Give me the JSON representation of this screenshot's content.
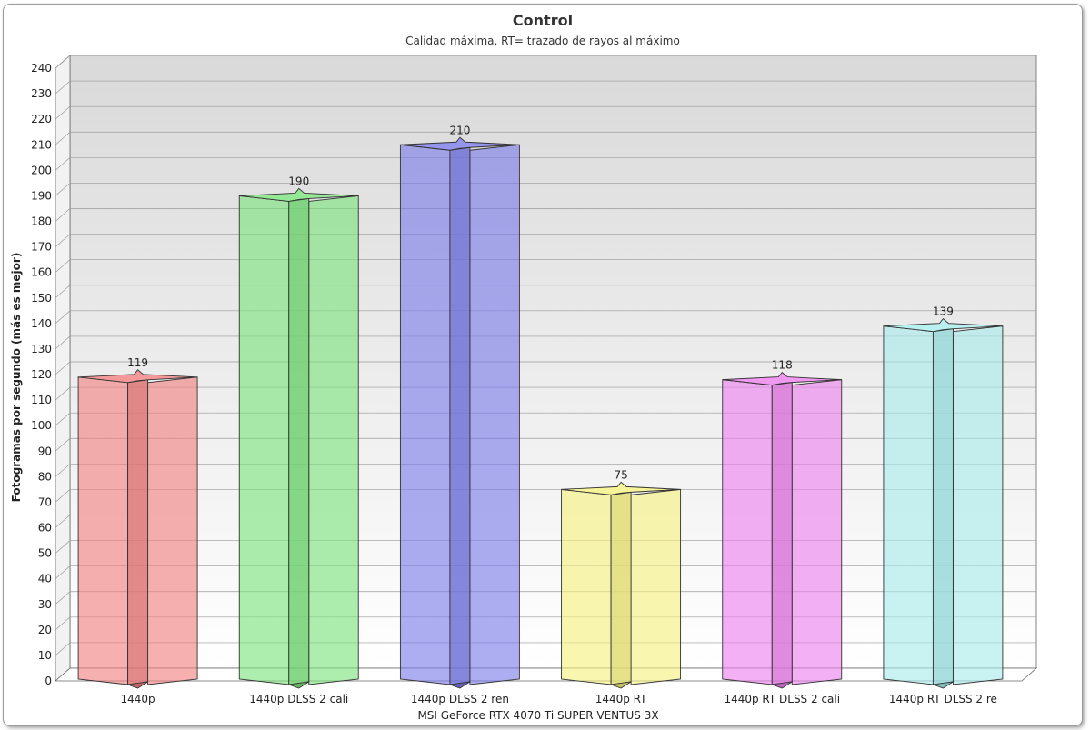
{
  "chart_data": {
    "type": "bar",
    "title": "Control",
    "subtitle": "Calidad máxima, RT= trazado de rayos al máximo",
    "xlabel": "MSI GeForce RTX 4070 Ti SUPER VENTUS 3X",
    "ylabel": "Fotogramas por segundo (más es mejor)",
    "ylim": [
      0,
      240
    ],
    "ytick_step": 10,
    "grid": true,
    "categories": [
      "1440p",
      "1440p DLSS 2 cali",
      "1440p DLSS 2 ren",
      "1440p RT",
      "1440p RT DLSS 2 cali",
      "1440p RT DLSS 2 re"
    ],
    "values": [
      119,
      190,
      210,
      75,
      118,
      139
    ],
    "colors": [
      "#f08080",
      "#7be27b",
      "#7b7bea",
      "#f5f080",
      "#ee80ee",
      "#a8ecec"
    ]
  }
}
